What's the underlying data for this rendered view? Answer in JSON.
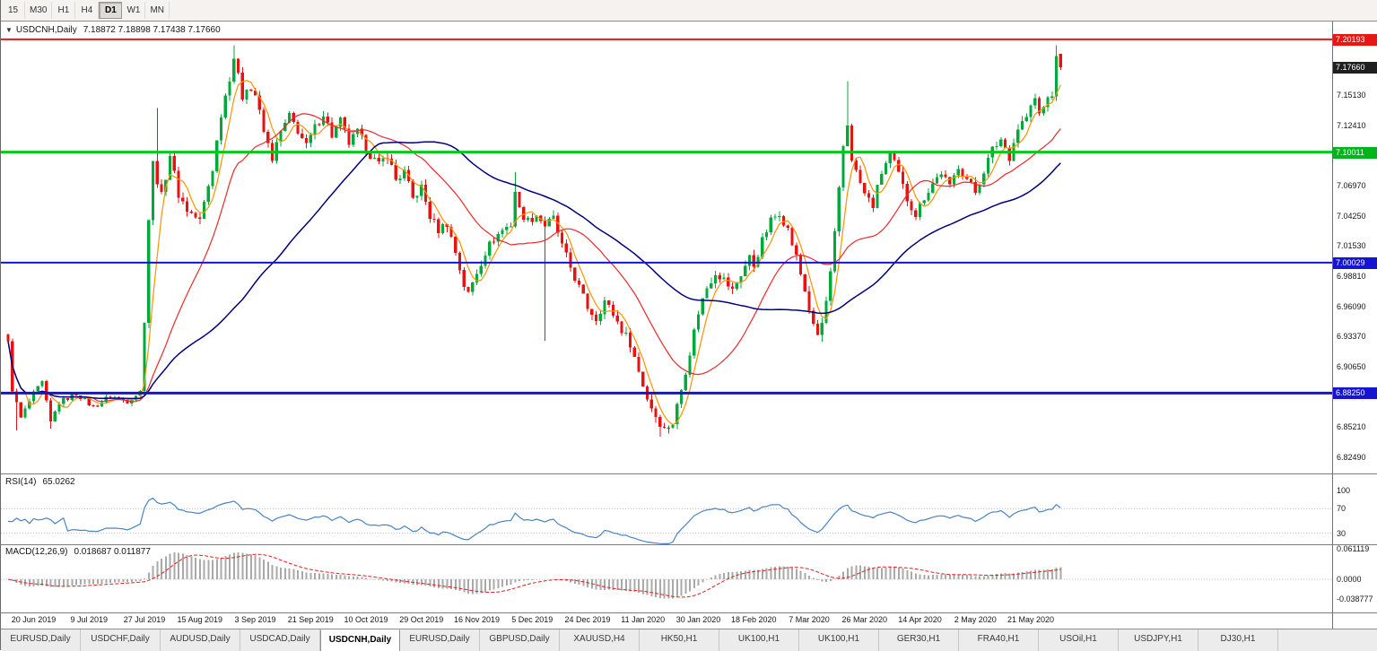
{
  "toolbar": {
    "timeframes": [
      {
        "label": "15",
        "active": false
      },
      {
        "label": "M30",
        "active": false
      },
      {
        "label": "H1",
        "active": false
      },
      {
        "label": "H4",
        "active": false
      },
      {
        "label": "D1",
        "active": true
      },
      {
        "label": "W1",
        "active": false
      },
      {
        "label": "MN",
        "active": false
      }
    ]
  },
  "chart_header": {
    "collapse_icon": "▼",
    "symbol": "USDCNH,Daily",
    "ohlc": "7.18872 7.18898 7.17438 7.17660"
  },
  "price_axis": {
    "ticks": [
      "7.15130",
      "7.12410",
      "7.09690",
      "7.06970",
      "7.04250",
      "7.01530",
      "6.98810",
      "6.96090",
      "6.93370",
      "6.90650",
      "6.87930",
      "6.85210",
      "6.82490"
    ],
    "badges": [
      {
        "text": "7.20193",
        "price": 7.20193,
        "bg": "#e81717",
        "fg": "#ffffff"
      },
      {
        "text": "7.17660",
        "price": 7.1766,
        "bg": "#1f1f1f",
        "fg": "#ffffff"
      },
      {
        "text": "7.10011",
        "price": 7.10011,
        "bg": "#00b41c",
        "fg": "#ffffff"
      },
      {
        "text": "7.00029",
        "price": 7.00029,
        "bg": "#1414d2",
        "fg": "#ffffff"
      },
      {
        "text": "6.88250",
        "price": 6.8825,
        "bg": "#1414d2",
        "fg": "#ffffff"
      }
    ]
  },
  "rsi_panel": {
    "label": "RSI(14)",
    "value": "65.0262",
    "line_color": "#4983c4",
    "level_color": "#bdbdbd",
    "levels": [
      70,
      30
    ],
    "axis_labels": [
      {
        "text": "100",
        "v": 100
      },
      {
        "text": "70",
        "v": 70
      },
      {
        "text": "30",
        "v": 30
      }
    ]
  },
  "macd_panel": {
    "label": "MACD(12,26,9)",
    "values": "0.018687 0.011877",
    "hist_color": "#a9a9a9",
    "signal_color": "#e02020",
    "zero_color": "#bdbdbd",
    "axis_labels": [
      {
        "text": "0.061119",
        "v": 0.061119
      },
      {
        "text": "0.0000",
        "v": 0
      },
      {
        "text": "-0.038777",
        "v": -0.038777
      }
    ]
  },
  "date_axis": [
    "20 Jun 2019",
    "9 Jul 2019",
    "27 Jul 2019",
    "15 Aug 2019",
    "3 Sep 2019",
    "21 Sep 2019",
    "10 Oct 2019",
    "29 Oct 2019",
    "16 Nov 2019",
    "5 Dec 2019",
    "24 Dec 2019",
    "11 Jan 2020",
    "30 Jan 2020",
    "18 Feb 2020",
    "7 Mar 2020",
    "26 Mar 2020",
    "14 Apr 2020",
    "2 May 2020",
    "21 May 2020"
  ],
  "tabs": [
    {
      "label": "EURUSD,Daily",
      "active": false
    },
    {
      "label": "USDCHF,Daily",
      "active": false
    },
    {
      "label": "AUDUSD,Daily",
      "active": false
    },
    {
      "label": "USDCAD,Daily",
      "active": false
    },
    {
      "label": "USDCNH,Daily",
      "active": true
    },
    {
      "label": "EURUSD,Daily",
      "active": false
    },
    {
      "label": "GBPUSD,Daily",
      "active": false
    },
    {
      "label": "XAUUSD,H4",
      "active": false
    },
    {
      "label": "HK50,H1",
      "active": false
    },
    {
      "label": "UK100,H1",
      "active": false
    },
    {
      "label": "UK100,H1",
      "active": false
    },
    {
      "label": "GER30,H1",
      "active": false
    },
    {
      "label": "FRA40,H1",
      "active": false
    },
    {
      "label": "USOil,H1",
      "active": false
    },
    {
      "label": "USDJPY,H1",
      "active": false
    },
    {
      "label": "DJ30,H1",
      "active": false
    }
  ],
  "chart_data": {
    "type": "candlestick",
    "symbol": "USDCNH",
    "timeframe": "Daily",
    "title": "USDCNH,Daily",
    "bar_count": 248,
    "first_tick_bar": 6,
    "bars_per_tick": 13,
    "price_range": {
      "max": 7.218,
      "min": 6.81
    },
    "last_candle": {
      "o": 7.18872,
      "h": 7.18898,
      "l": 7.17438,
      "c": 7.1766
    },
    "price_path_anchors": [
      [
        0,
        6.928
      ],
      [
        1,
        6.886
      ],
      [
        3,
        6.86
      ],
      [
        6,
        6.882
      ],
      [
        8,
        6.892
      ],
      [
        10,
        6.856
      ],
      [
        12,
        6.874
      ],
      [
        16,
        6.882
      ],
      [
        20,
        6.87
      ],
      [
        24,
        6.88
      ],
      [
        28,
        6.875
      ],
      [
        31,
        6.884
      ],
      [
        32,
        6.95
      ],
      [
        33,
        7.04
      ],
      [
        34,
        7.09
      ],
      [
        36,
        7.06
      ],
      [
        38,
        7.098
      ],
      [
        40,
        7.062
      ],
      [
        42,
        7.048
      ],
      [
        45,
        7.038
      ],
      [
        47,
        7.07
      ],
      [
        48,
        7.085
      ],
      [
        50,
        7.135
      ],
      [
        52,
        7.168
      ],
      [
        53,
        7.186
      ],
      [
        55,
        7.15
      ],
      [
        56,
        7.16
      ],
      [
        58,
        7.152
      ],
      [
        60,
        7.118
      ],
      [
        62,
        7.095
      ],
      [
        64,
        7.118
      ],
      [
        66,
        7.132
      ],
      [
        68,
        7.12
      ],
      [
        70,
        7.105
      ],
      [
        72,
        7.122
      ],
      [
        74,
        7.135
      ],
      [
        76,
        7.115
      ],
      [
        78,
        7.128
      ],
      [
        80,
        7.108
      ],
      [
        82,
        7.118
      ],
      [
        85,
        7.098
      ],
      [
        87,
        7.088
      ],
      [
        89,
        7.098
      ],
      [
        91,
        7.075
      ],
      [
        93,
        7.082
      ],
      [
        95,
        7.058
      ],
      [
        97,
        7.068
      ],
      [
        99,
        7.042
      ],
      [
        101,
        7.03
      ],
      [
        103,
        7.036
      ],
      [
        105,
        7.01
      ],
      [
        107,
        6.98
      ],
      [
        108,
        6.972
      ],
      [
        110,
        6.992
      ],
      [
        112,
        7.01
      ],
      [
        114,
        7.022
      ],
      [
        116,
        7.03
      ],
      [
        118,
        7.035
      ],
      [
        119,
        7.065
      ],
      [
        120,
        7.048
      ],
      [
        122,
        7.038
      ],
      [
        124,
        7.044
      ],
      [
        126,
        7.034
      ],
      [
        128,
        7.04
      ],
      [
        130,
        7.015
      ],
      [
        132,
        6.996
      ],
      [
        134,
        6.978
      ],
      [
        136,
        6.96
      ],
      [
        138,
        6.95
      ],
      [
        140,
        6.966
      ],
      [
        142,
        6.954
      ],
      [
        144,
        6.94
      ],
      [
        146,
        6.928
      ],
      [
        148,
        6.902
      ],
      [
        150,
        6.878
      ],
      [
        152,
        6.862
      ],
      [
        154,
        6.85
      ],
      [
        156,
        6.856
      ],
      [
        158,
        6.886
      ],
      [
        160,
        6.92
      ],
      [
        162,
        6.956
      ],
      [
        164,
        6.978
      ],
      [
        166,
        6.992
      ],
      [
        168,
        6.985
      ],
      [
        170,
        6.975
      ],
      [
        172,
        6.99
      ],
      [
        174,
        7.005
      ],
      [
        175,
        6.998
      ],
      [
        177,
        7.02
      ],
      [
        179,
        7.038
      ],
      [
        181,
        7.046
      ],
      [
        183,
        7.03
      ],
      [
        185,
        7.005
      ],
      [
        187,
        6.975
      ],
      [
        189,
        6.942
      ],
      [
        190,
        6.935
      ],
      [
        191,
        6.945
      ],
      [
        192,
        6.965
      ],
      [
        193,
        6.99
      ],
      [
        194,
        7.025
      ],
      [
        195,
        7.065
      ],
      [
        196,
        7.105
      ],
      [
        197,
        7.125
      ],
      [
        198,
        7.095
      ],
      [
        199,
        7.082
      ],
      [
        201,
        7.062
      ],
      [
        203,
        7.052
      ],
      [
        205,
        7.082
      ],
      [
        207,
        7.098
      ],
      [
        209,
        7.08
      ],
      [
        211,
        7.058
      ],
      [
        213,
        7.044
      ],
      [
        215,
        7.06
      ],
      [
        217,
        7.072
      ],
      [
        219,
        7.082
      ],
      [
        221,
        7.068
      ],
      [
        223,
        7.088
      ],
      [
        225,
        7.076
      ],
      [
        227,
        7.064
      ],
      [
        229,
        7.084
      ],
      [
        231,
        7.102
      ],
      [
        233,
        7.112
      ],
      [
        235,
        7.096
      ],
      [
        237,
        7.122
      ],
      [
        239,
        7.132
      ],
      [
        241,
        7.148
      ],
      [
        242,
        7.134
      ],
      [
        243,
        7.14
      ],
      [
        244,
        7.152
      ],
      [
        245,
        7.147
      ],
      [
        246,
        7.189
      ],
      [
        247,
        7.1766
      ]
    ],
    "wick_overrides": {
      "2": {
        "lo": 6.849
      },
      "10": {
        "lo": 6.8505
      },
      "35": {
        "hi": 7.14
      },
      "53": {
        "hi": 7.1965
      },
      "119": {
        "hi": 7.082
      },
      "126": {
        "lo": 6.93
      },
      "153": {
        "lo": 6.843
      },
      "155": {
        "lo": 6.846
      },
      "191": {
        "lo": 6.929
      },
      "197": {
        "hi": 7.164
      },
      "246": {
        "hi": 7.1965
      }
    },
    "noise": {
      "calm_until": 32,
      "calm": 0.0022,
      "normal": 0.0042
    },
    "candle_up_color": "#00a93c",
    "candle_down_color": "#e81212",
    "moving_averages": [
      {
        "period": 5,
        "color": "#ff9200",
        "width": 1.2
      },
      {
        "period": 21,
        "color": "#ef2929",
        "width": 1.2
      },
      {
        "period": 55,
        "color": "#00007f",
        "width": 1.5
      }
    ],
    "horizontal_lines": [
      {
        "price": 7.20193,
        "color": "#e81717",
        "width": 2
      },
      {
        "price": 7.10011,
        "color": "#00c81c",
        "width": 3
      },
      {
        "price": 7.00029,
        "color": "#1414d2",
        "width": 2
      },
      {
        "price": 6.8825,
        "color": "#1414d2",
        "width": 3
      }
    ],
    "rsi": {
      "period": 14,
      "current": 65.0262
    },
    "macd": {
      "fast": 12,
      "slow": 26,
      "signal": 9,
      "current_macd": 0.018687,
      "current_signal": 0.011877
    },
    "macd_axis_max": 0.061119,
    "macd_axis_min": -0.038777
  }
}
